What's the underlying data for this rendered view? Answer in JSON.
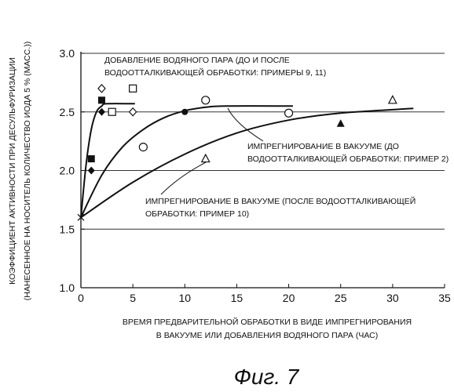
{
  "chart_data": {
    "type": "scatter",
    "ylabel": [
      "КОЭФФИЦИЕНТ АКТИВНОСТИ ПРИ ДЕСУЛЬФУРИЗАЦИИ",
      "(НАНЕСЕННОЕ НА НОСИТЕЛЬ КОЛИЧЕСТВО ИОДА 5 % (МАСС.))"
    ],
    "xlabel": [
      "ВРЕМЯ ПРЕДВАРИТЕЛЬНОЙ ОБРАБОТКИ В ВИДЕ ИМПРЕГНИРОВАНИЯ",
      "В ВАКУУМЕ ИЛИ ДОБАВЛЕНИЯ ВОДЯНОГО ПАРА (ЧАС)"
    ],
    "xlim": [
      0,
      35
    ],
    "ylim": [
      1.0,
      3.0
    ],
    "x_ticks": [
      "0",
      "5",
      "10",
      "15",
      "20",
      "25",
      "30",
      "35"
    ],
    "y_ticks": [
      "1.0",
      "1.5",
      "2.0",
      "2.5",
      "3.0"
    ],
    "grid": "horizontal",
    "annotations": [
      {
        "lines": [
          "ДОБАВЛЕНИЕ ВОДЯНОГО ПАРА (ДО И ПОСЛЕ",
          "ВОДООТТАЛКИВАЮЩЕЙ ОБРАБОТКИ: ПРИМЕРЫ 9, 11)"
        ]
      },
      {
        "lines": [
          "ИМПРЕГНИРОВАНИЕ В ВАКУУМЕ (ДО",
          "ВОДООТТАЛКИВАЮЩЕЙ ОБРАБОТКИ: ПРИМЕР 2)"
        ]
      },
      {
        "lines": [
          "ИМПРЕГНИРОВАНИЕ В ВАКУУМЕ (ПОСЛЕ ВОДООТТАЛКИВАЮЩЕЙ",
          "ОБРАБОТКИ: ПРИМЕР 10)"
        ]
      }
    ],
    "series": [
      {
        "marker": "cross",
        "points": [
          [
            0,
            1.6
          ]
        ]
      },
      {
        "marker": "filled-square",
        "points": [
          [
            1,
            2.1
          ],
          [
            2,
            2.6
          ]
        ]
      },
      {
        "marker": "filled-diamond",
        "points": [
          [
            1,
            2.0
          ],
          [
            2,
            2.5
          ]
        ]
      },
      {
        "marker": "open-square",
        "points": [
          [
            3,
            2.5
          ],
          [
            5,
            2.7
          ]
        ]
      },
      {
        "marker": "open-diamond",
        "points": [
          [
            2,
            2.7
          ],
          [
            5,
            2.5
          ]
        ]
      },
      {
        "marker": "open-circle",
        "points": [
          [
            6,
            2.2
          ],
          [
            12,
            2.6
          ],
          [
            20,
            2.49
          ]
        ]
      },
      {
        "marker": "filled-circle",
        "points": [
          [
            10,
            2.5
          ]
        ]
      },
      {
        "marker": "open-triangle",
        "points": [
          [
            12,
            2.1
          ],
          [
            30,
            2.6
          ]
        ]
      },
      {
        "marker": "filled-triangle",
        "points": [
          [
            25,
            2.4
          ]
        ]
      }
    ],
    "curves": [
      {
        "points": [
          [
            0,
            1.6
          ],
          [
            0.5,
            2.05
          ],
          [
            1,
            2.35
          ],
          [
            1.5,
            2.5
          ],
          [
            2,
            2.55
          ],
          [
            2.5,
            2.57
          ],
          [
            5.2,
            2.57
          ]
        ]
      },
      {
        "points": [
          [
            0,
            1.6
          ],
          [
            2,
            1.96
          ],
          [
            4,
            2.2
          ],
          [
            6,
            2.35
          ],
          [
            8,
            2.45
          ],
          [
            10,
            2.51
          ],
          [
            12,
            2.54
          ],
          [
            14,
            2.55
          ],
          [
            20.4,
            2.55
          ]
        ]
      },
      {
        "points": [
          [
            0,
            1.6
          ],
          [
            5,
            1.9
          ],
          [
            10,
            2.14
          ],
          [
            15,
            2.32
          ],
          [
            20,
            2.43
          ],
          [
            25,
            2.49
          ],
          [
            32,
            2.53
          ]
        ]
      }
    ]
  },
  "figure_label": "Фиг. 7"
}
